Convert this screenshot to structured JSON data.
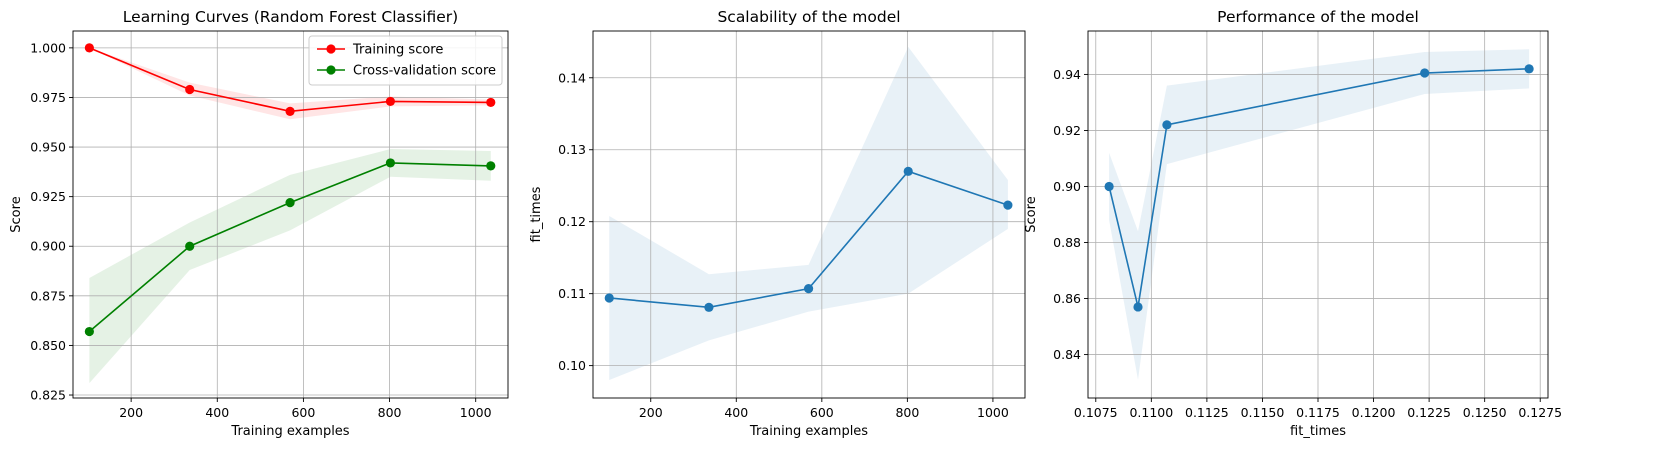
{
  "chart_data": [
    {
      "type": "line",
      "title": "Learning Curves (Random Forest Classifier)",
      "xlabel": "Training examples",
      "ylabel": "Score",
      "xlim": [
        65,
        1075
      ],
      "ylim": [
        0.8235,
        1.0085
      ],
      "xticks": [
        200,
        400,
        600,
        800,
        1000
      ],
      "yticks": [
        0.825,
        0.85,
        0.875,
        0.9,
        0.925,
        0.95,
        0.975,
        1.0
      ],
      "xtick_labels": [
        "200",
        "400",
        "600",
        "800",
        "1000"
      ],
      "ytick_labels": [
        "0.825",
        "0.850",
        "0.875",
        "0.900",
        "0.925",
        "0.950",
        "0.975",
        "1.000"
      ],
      "grid": true,
      "legend": "top-right",
      "series": [
        {
          "name": "Training score",
          "color": "#ff0000",
          "x": [
            103,
            336,
            569,
            802,
            1035
          ],
          "y": [
            1.0,
            0.979,
            0.968,
            0.973,
            0.9725
          ],
          "lower": [
            1.0,
            0.976,
            0.964,
            0.9705,
            0.971
          ],
          "upper": [
            1.0,
            0.9825,
            0.972,
            0.9755,
            0.974
          ]
        },
        {
          "name": "Cross-validation score",
          "color": "#008000",
          "x": [
            103,
            336,
            569,
            802,
            1035
          ],
          "y": [
            0.857,
            0.9,
            0.922,
            0.942,
            0.9405
          ],
          "lower": [
            0.831,
            0.888,
            0.908,
            0.935,
            0.933
          ],
          "upper": [
            0.884,
            0.912,
            0.936,
            0.949,
            0.948
          ]
        }
      ]
    },
    {
      "type": "line",
      "title": "Scalability of the model",
      "xlabel": "Training examples",
      "ylabel": "fit_times",
      "xlim": [
        65,
        1075
      ],
      "ylim": [
        0.0955,
        0.1465
      ],
      "xticks": [
        200,
        400,
        600,
        800,
        1000
      ],
      "yticks": [
        0.1,
        0.11,
        0.12,
        0.13,
        0.14
      ],
      "xtick_labels": [
        "200",
        "400",
        "600",
        "800",
        "1000"
      ],
      "ytick_labels": [
        "0.10",
        "0.11",
        "0.12",
        "0.13",
        "0.14"
      ],
      "grid": true,
      "series": [
        {
          "color": "#1f77b4",
          "x": [
            103,
            336,
            569,
            802,
            1035
          ],
          "y": [
            0.1094,
            0.1081,
            0.1107,
            0.127,
            0.1223
          ],
          "lower": [
            0.098,
            0.1035,
            0.1075,
            0.11,
            0.119
          ],
          "upper": [
            0.1208,
            0.1127,
            0.114,
            0.1443,
            0.1258
          ]
        }
      ]
    },
    {
      "type": "line",
      "title": "Performance of the model",
      "xlabel": "fit_times",
      "ylabel": "Score",
      "xlim": [
        0.10715,
        0.12785
      ],
      "ylim": [
        0.8245,
        0.9555
      ],
      "xticks": [
        0.1075,
        0.11,
        0.1125,
        0.115,
        0.1175,
        0.12,
        0.1225,
        0.125,
        0.1275
      ],
      "yticks": [
        0.84,
        0.86,
        0.88,
        0.9,
        0.92,
        0.94
      ],
      "xtick_labels": [
        "0.1075",
        "0.1100",
        "0.1125",
        "0.1150",
        "0.1175",
        "0.1200",
        "0.1225",
        "0.1250",
        "0.1275"
      ],
      "ytick_labels": [
        "0.84",
        "0.86",
        "0.88",
        "0.90",
        "0.92",
        "0.94"
      ],
      "grid": true,
      "series": [
        {
          "color": "#1f77b4",
          "x": [
            0.1081,
            0.1094,
            0.1107,
            0.1223,
            0.127
          ],
          "y": [
            0.9,
            0.857,
            0.922,
            0.9405,
            0.942
          ],
          "lower": [
            0.888,
            0.831,
            0.908,
            0.933,
            0.935
          ],
          "upper": [
            0.912,
            0.884,
            0.936,
            0.948,
            0.949
          ]
        }
      ]
    }
  ]
}
